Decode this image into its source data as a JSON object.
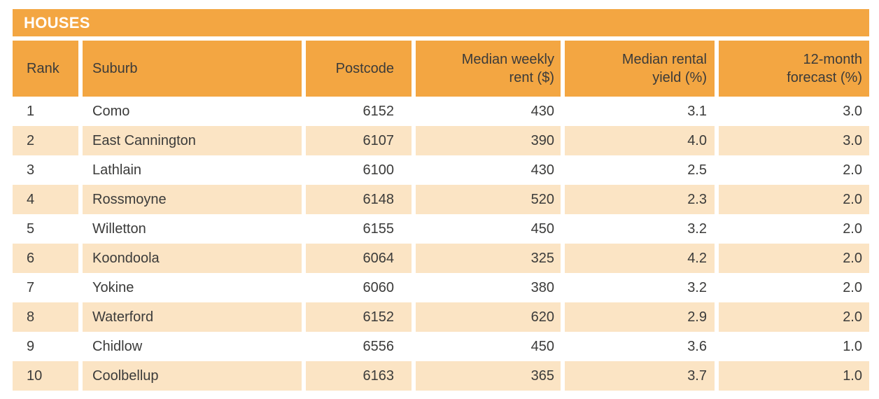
{
  "title_bar": {
    "label": "HOUSES"
  },
  "columns": [
    {
      "key": "rank",
      "label": "Rank"
    },
    {
      "key": "suburb",
      "label": "Suburb"
    },
    {
      "key": "postcode",
      "label": "Postcode"
    },
    {
      "key": "rent",
      "label": "Median weekly\nrent ($)"
    },
    {
      "key": "yield",
      "label": "Median rental\nyield (%)"
    },
    {
      "key": "forecast",
      "label": "12-month\nforecast (%)"
    }
  ],
  "chart_data": {
    "type": "table",
    "title": "HOUSES",
    "columns": [
      "Rank",
      "Suburb",
      "Postcode",
      "Median weekly rent ($)",
      "Median rental yield (%)",
      "12-month forecast (%)"
    ],
    "rows": [
      [
        "1",
        "Como",
        "6152",
        "430",
        "3.1",
        "3.0"
      ],
      [
        "2",
        "East Cannington",
        "6107",
        "390",
        "4.0",
        "3.0"
      ],
      [
        "3",
        "Lathlain",
        "6100",
        "430",
        "2.5",
        "2.0"
      ],
      [
        "4",
        "Rossmoyne",
        "6148",
        "520",
        "2.3",
        "2.0"
      ],
      [
        "5",
        "Willetton",
        "6155",
        "450",
        "3.2",
        "2.0"
      ],
      [
        "6",
        "Koondoola",
        "6064",
        "325",
        "4.2",
        "2.0"
      ],
      [
        "7",
        "Yokine",
        "6060",
        "380",
        "3.2",
        "2.0"
      ],
      [
        "8",
        "Waterford",
        "6152",
        "620",
        "2.9",
        "2.0"
      ],
      [
        "9",
        "Chidlow",
        "6556",
        "450",
        "3.6",
        "1.0"
      ],
      [
        "10",
        "Coolbellup",
        "6163",
        "365",
        "3.7",
        "1.0"
      ]
    ],
    "layout": {
      "row_striping": "alternating white and peach",
      "header_background": "orange",
      "numeric_columns_right_aligned": true
    }
  },
  "colors": {
    "orange": "#F3A642",
    "peach": "#FBE4C4",
    "text": "#3B3B3A",
    "title_text": "#FFFFFF"
  }
}
